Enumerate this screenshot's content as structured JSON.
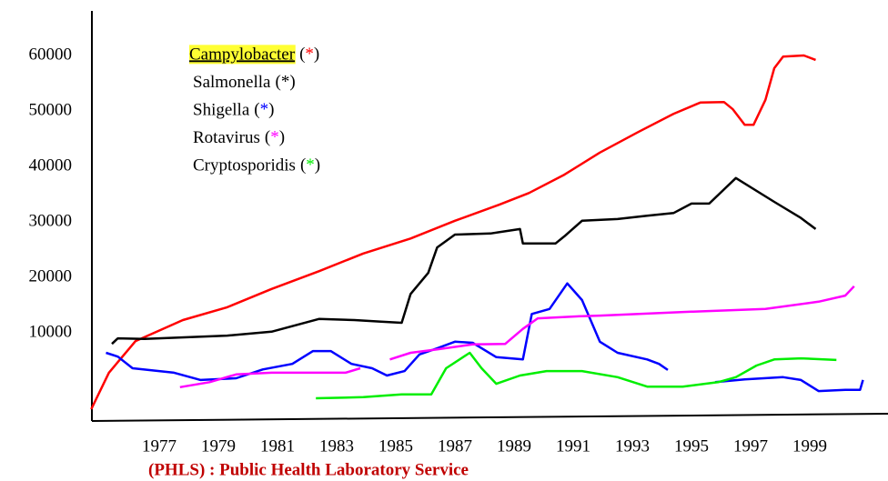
{
  "chart_data": {
    "type": "line",
    "source": "(PHLS) : Public Health Laboratory Service",
    "legend_marker": "(*)",
    "legend_highlight": "#ffff33",
    "xlim": [
      1974.7,
      2001.6
    ],
    "xticks": [
      1977,
      1979,
      1981,
      1983,
      1985,
      1987,
      1989,
      1991,
      1993,
      1995,
      1997,
      1999
    ],
    "ylim": [
      -5900,
      68000
    ],
    "yticks": [
      10000,
      20000,
      30000,
      40000,
      50000,
      60000
    ],
    "series": [
      {
        "name": "Campylobacter",
        "color": "#ff0000",
        "x": [
          1974.7,
          1975.3,
          1976.2,
          1977.8,
          1979.3,
          1980.8,
          1982.4,
          1983.9,
          1985.5,
          1987,
          1988.5,
          1989.5,
          1990.7,
          1991.9,
          1993.2,
          1994.4,
          1995.3,
          1996.1,
          1996.4,
          1996.8,
          1997.1,
          1997.5,
          1997.8,
          1998.1,
          1998.8,
          1999.2
        ],
        "values": [
          -3770,
          2800,
          8500,
          12300,
          14600,
          17900,
          21100,
          24300,
          27000,
          30200,
          33100,
          35200,
          38500,
          42500,
          46200,
          49500,
          51500,
          51600,
          50300,
          47500,
          47500,
          52000,
          57700,
          59800,
          60000,
          59200
        ]
      },
      {
        "name": "Salmonella",
        "color": "#000000",
        "x": [
          1975.4,
          1975.6,
          1976.5,
          1979.3,
          1980.8,
          1982.4,
          1983.6,
          1984.5,
          1985.2,
          1985.5,
          1986.1,
          1986.4,
          1987,
          1988.2,
          1989.2,
          1989.3,
          1990.4,
          1990.7,
          1991.3,
          1992.5,
          1993.5,
          1994.4,
          1995,
          1995.6,
          1996.5,
          1997.8,
          1998.7,
          1999.2
        ],
        "values": [
          8000,
          9000,
          8900,
          9500,
          10200,
          12500,
          12300,
          12000,
          11800,
          17000,
          20800,
          25400,
          27700,
          27900,
          28700,
          26100,
          26100,
          27400,
          30200,
          30500,
          31100,
          31600,
          33300,
          33300,
          37900,
          33600,
          30700,
          28700
        ]
      },
      {
        "name": "Shigella",
        "color": "#0000ff",
        "x": [
          1975.2,
          1975.6,
          1976.1,
          1977.5,
          1978.4,
          1979.6,
          1980.5,
          1981.5,
          1982.2,
          1982.8,
          1983.5,
          1984.2,
          1984.7,
          1985.3,
          1985.8,
          1986.4,
          1987,
          1987.6,
          1988.4,
          1989.3,
          1989.6,
          1990.2,
          1990.8,
          1991.3,
          1991.9,
          1992.5,
          1993.5,
          1993.9,
          1994.2,
          1995,
          1995.8,
          1996.8,
          1998.1,
          1998.7,
          1999.3,
          2000.2,
          2000.7,
          2000.8
        ],
        "values": [
          6400,
          5700,
          3600,
          2800,
          1500,
          1800,
          3400,
          4400,
          6700,
          6700,
          4400,
          3600,
          2300,
          3100,
          6100,
          7200,
          8400,
          8200,
          5600,
          5200,
          13400,
          14300,
          18900,
          15900,
          8400,
          6400,
          5200,
          4400,
          3300,
          null,
          1100,
          1600,
          2000,
          1500,
          -500,
          -300,
          -300,
          1500
        ]
      },
      {
        "name": "Rotavirus",
        "color": "#ff00ff",
        "x": [
          1977.7,
          1978.7,
          1979.6,
          1980.8,
          1983.3,
          1983.8,
          1984.3,
          1984.8,
          1985.5,
          1986.4,
          1987.6,
          1988.7,
          1989.3,
          1989.8,
          1991.3,
          1991.9,
          1995,
          1997.5,
          1999.3,
          2000.2,
          2000.5
        ],
        "values": [
          200,
          1100,
          2500,
          2800,
          2800,
          3600,
          null,
          5200,
          6400,
          7000,
          7900,
          8000,
          10700,
          12600,
          13000,
          13100,
          13800,
          14300,
          15600,
          16700,
          18400
        ]
      },
      {
        "name": "Cryptosporidis",
        "color": "#00ee00",
        "x": [
          1982.3,
          1983.9,
          1985.2,
          1986.2,
          1986.7,
          1987.5,
          1987.9,
          1988.4,
          1989.2,
          1990.1,
          1991.3,
          1992.5,
          1993.5,
          1994.7,
          1995.9,
          1996.5,
          1997.2,
          1997.8,
          1998.7,
          1999.9
        ],
        "values": [
          -1800,
          -1600,
          -1100,
          -1100,
          3600,
          6400,
          3600,
          800,
          2300,
          3100,
          3100,
          2000,
          300,
          300,
          1100,
          2000,
          4100,
          5200,
          5400,
          5100
        ]
      }
    ]
  }
}
